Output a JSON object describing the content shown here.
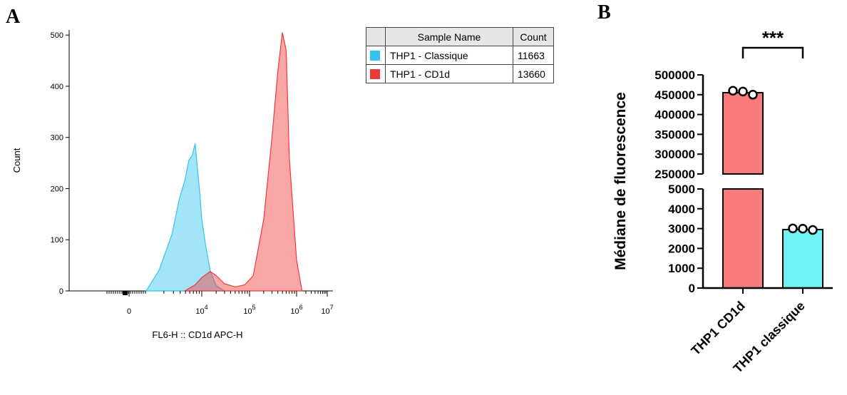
{
  "panels": {
    "a_label": "A",
    "b_label": "B"
  },
  "legend": {
    "headers": {
      "swatch": "",
      "name": "Sample Name",
      "count": "Count"
    },
    "rows": [
      {
        "name": "THP1 - Classique",
        "count": "11663",
        "color": "#33c5ef"
      },
      {
        "name": "THP1 - CD1d",
        "count": "13660",
        "color": "#f03a3a"
      }
    ]
  },
  "chart_data": [
    {
      "type": "area",
      "ylabel": "Count",
      "xlabel": "FL6-H :: CD1d APC-H",
      "ylim": [
        0,
        510
      ],
      "yticks": [
        0,
        100,
        200,
        300,
        400,
        500
      ],
      "xscale": "biexponential",
      "xticks": [
        "0",
        "10^4",
        "10^5",
        "10^6",
        "10^7"
      ],
      "series": [
        {
          "name": "THP1 - Classique",
          "color": "#33c5ef",
          "x": [
            "5e2",
            "1e3",
            "2e3",
            "3e3",
            "4e3",
            "5e3",
            "6e3",
            "7e3",
            "8e3",
            "9e3",
            "1e4",
            "1.2e4",
            "1.5e4",
            "2e4",
            "3e4"
          ],
          "y": [
            0,
            40,
            110,
            180,
            215,
            255,
            265,
            288,
            235,
            190,
            140,
            90,
            40,
            10,
            0
          ]
        },
        {
          "name": "THP1 - CD1d",
          "color": "#f03a3a",
          "x": [
            "4e3",
            "7e3",
            "1e4",
            "1.5e4",
            "2e4",
            "3e4",
            "5e4",
            "8e4",
            "1.2e5",
            "2e5",
            "3e5",
            "4e5",
            "5e5",
            "6e5",
            "7e5",
            "1e6",
            "1.5e6"
          ],
          "y": [
            0,
            12,
            26,
            38,
            30,
            14,
            8,
            12,
            30,
            140,
            300,
            430,
            505,
            470,
            260,
            60,
            0
          ]
        }
      ]
    },
    {
      "type": "bar",
      "ylabel": "Médiane de fluorescence",
      "categories": [
        "THP1 CD1d",
        "THP1 classique"
      ],
      "values": [
        455000,
        2950
      ],
      "colors": [
        "#f87a7a",
        "#6ef2f4"
      ],
      "points": [
        [
          460000,
          458000,
          450000
        ],
        [
          3010,
          2995,
          2930
        ]
      ],
      "axis_break": {
        "lower_range": [
          0,
          5000
        ],
        "upper_range": [
          250000,
          500000
        ]
      },
      "yticks_lower": [
        "0",
        "1000",
        "2000",
        "3000",
        "4000",
        "5000"
      ],
      "yticks_upper": [
        "250000",
        "300000",
        "350000",
        "400000",
        "450000",
        "500000"
      ],
      "significance": "***"
    }
  ]
}
